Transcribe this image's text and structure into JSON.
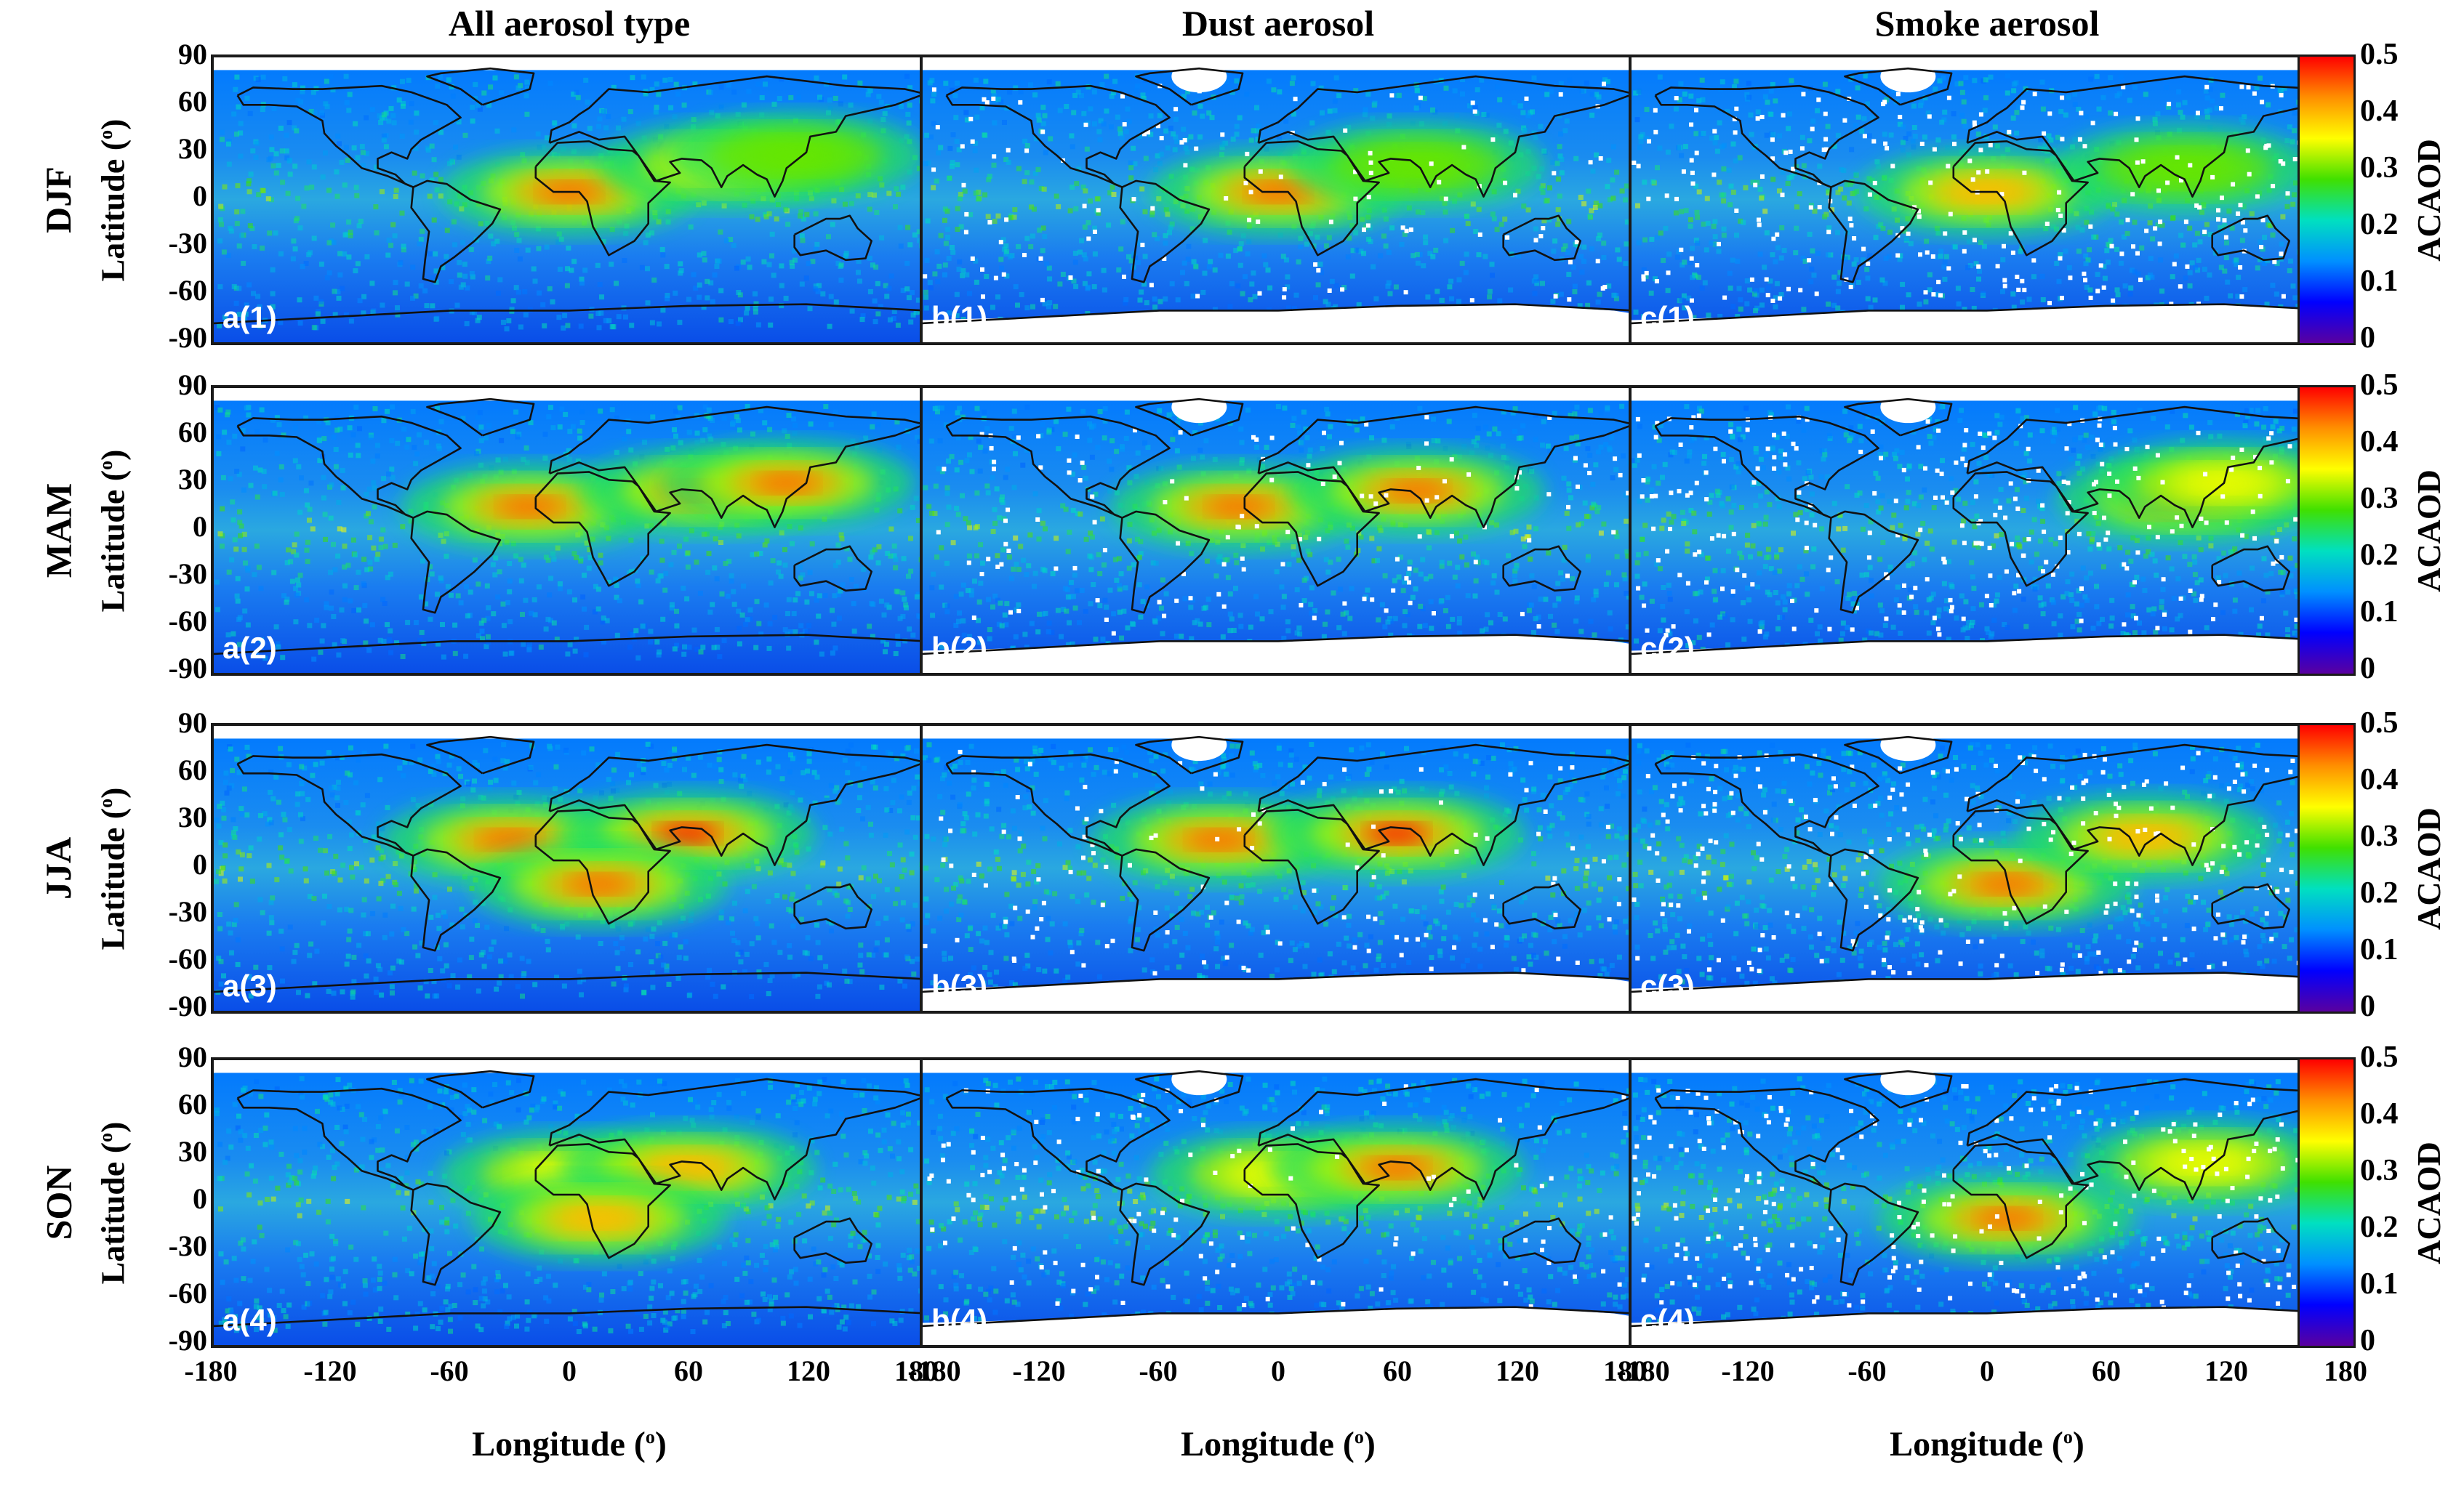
{
  "columns": [
    {
      "title": "All aerosol type",
      "prefix": "a"
    },
    {
      "title": "Dust aerosol",
      "prefix": "b"
    },
    {
      "title": "Smoke aerosol",
      "prefix": "c"
    }
  ],
  "rows": [
    {
      "season": "DJF",
      "panels": [
        "a(1)",
        "b(1)",
        "c(1)"
      ]
    },
    {
      "season": "MAM",
      "panels": [
        "a(2)",
        "b(2)",
        "c(2)"
      ]
    },
    {
      "season": "JJA",
      "panels": [
        "a(3)",
        "b(3)",
        "c(3)"
      ]
    },
    {
      "season": "SON",
      "panels": [
        "a(4)",
        "b(4)",
        "c(4)"
      ]
    }
  ],
  "axes": {
    "ylabel_text": "Latitude (",
    "xlabel_text": "Longitude (",
    "degree_sup": "o",
    "close_paren": ")",
    "yticks": [
      "90",
      "60",
      "30",
      "0",
      "-30",
      "-60",
      "-90"
    ],
    "xticks": [
      "-180",
      "-120",
      "-60",
      "0",
      "60",
      "120",
      "180"
    ]
  },
  "colorbar": {
    "label": "ACAOD",
    "ticks": [
      "0.5",
      "0.4",
      "0.3",
      "0.2",
      "0.1",
      "0"
    ],
    "range": [
      0,
      0.5
    ],
    "colors": [
      "#5a00a0",
      "#0000ff",
      "#0090ff",
      "#00e0c0",
      "#40e000",
      "#ffff00",
      "#ff9000",
      "#ff0000"
    ]
  },
  "chart_data": {
    "type": "heatmap",
    "variable": "ACAOD",
    "x_range": [
      -180,
      180
    ],
    "y_range": [
      -90,
      90
    ],
    "value_range": [
      0,
      0.5
    ],
    "panels": [
      {
        "id": "a(1)",
        "aerosol": "All aerosol type",
        "season": "DJF",
        "peak_regions": [
          {
            "lon": 0,
            "lat": 5,
            "acaod": 0.45
          },
          {
            "lon": 80,
            "lat": 22,
            "acaod": 0.35
          },
          {
            "lon": 115,
            "lat": 28,
            "acaod": 0.3
          }
        ]
      },
      {
        "id": "b(1)",
        "aerosol": "Dust aerosol",
        "season": "DJF",
        "peak_regions": [
          {
            "lon": 0,
            "lat": 5,
            "acaod": 0.45
          },
          {
            "lon": 70,
            "lat": 22,
            "acaod": 0.3
          }
        ]
      },
      {
        "id": "c(1)",
        "aerosol": "Smoke aerosol",
        "season": "DJF",
        "peak_regions": [
          {
            "lon": 0,
            "lat": 5,
            "acaod": 0.4
          },
          {
            "lon": 100,
            "lat": 20,
            "acaod": 0.3
          }
        ]
      },
      {
        "id": "a(2)",
        "aerosol": "All aerosol type",
        "season": "MAM",
        "peak_regions": [
          {
            "lon": -20,
            "lat": 15,
            "acaod": 0.45
          },
          {
            "lon": 70,
            "lat": 25,
            "acaod": 0.45
          },
          {
            "lon": 110,
            "lat": 30,
            "acaod": 0.45
          }
        ]
      },
      {
        "id": "b(2)",
        "aerosol": "Dust aerosol",
        "season": "MAM",
        "peak_regions": [
          {
            "lon": -20,
            "lat": 15,
            "acaod": 0.45
          },
          {
            "lon": 70,
            "lat": 25,
            "acaod": 0.45
          }
        ]
      },
      {
        "id": "c(2)",
        "aerosol": "Smoke aerosol",
        "season": "MAM",
        "peak_regions": [
          {
            "lon": 100,
            "lat": 20,
            "acaod": 0.45
          },
          {
            "lon": 120,
            "lat": 30,
            "acaod": 0.35
          }
        ]
      },
      {
        "id": "a(3)",
        "aerosol": "All aerosol type",
        "season": "JJA",
        "peak_regions": [
          {
            "lon": -30,
            "lat": 18,
            "acaod": 0.45
          },
          {
            "lon": 60,
            "lat": 22,
            "acaod": 0.5
          },
          {
            "lon": 15,
            "lat": -10,
            "acaod": 0.45
          }
        ]
      },
      {
        "id": "b(3)",
        "aerosol": "Dust aerosol",
        "season": "JJA",
        "peak_regions": [
          {
            "lon": -30,
            "lat": 18,
            "acaod": 0.45
          },
          {
            "lon": 60,
            "lat": 22,
            "acaod": 0.5
          }
        ]
      },
      {
        "id": "c(3)",
        "aerosol": "Smoke aerosol",
        "season": "JJA",
        "peak_regions": [
          {
            "lon": 10,
            "lat": -10,
            "acaod": 0.45
          },
          {
            "lon": 80,
            "lat": 20,
            "acaod": 0.4
          }
        ]
      },
      {
        "id": "a(4)",
        "aerosol": "All aerosol type",
        "season": "SON",
        "peak_regions": [
          {
            "lon": 0,
            "lat": 18,
            "acaod": 0.35
          },
          {
            "lon": 60,
            "lat": 22,
            "acaod": 0.4
          },
          {
            "lon": 15,
            "lat": -10,
            "acaod": 0.4
          }
        ]
      },
      {
        "id": "b(4)",
        "aerosol": "Dust aerosol",
        "season": "SON",
        "peak_regions": [
          {
            "lon": 0,
            "lat": 18,
            "acaod": 0.35
          },
          {
            "lon": 60,
            "lat": 22,
            "acaod": 0.45
          }
        ]
      },
      {
        "id": "c(4)",
        "aerosol": "Smoke aerosol",
        "season": "SON",
        "peak_regions": [
          {
            "lon": 10,
            "lat": -10,
            "acaod": 0.45
          },
          {
            "lon": 110,
            "lat": 25,
            "acaod": 0.35
          }
        ]
      }
    ]
  }
}
